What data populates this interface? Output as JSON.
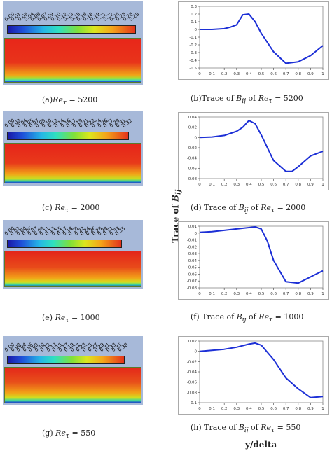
{
  "figures": [
    {
      "id": "a",
      "caption_tag": "(a)",
      "caption_var": "Re",
      "caption_sub": "τ",
      "caption_val": " = 5200",
      "colorbar_ticks": [
        "0.00",
        "0.01",
        "0.03",
        "0.04",
        "0.06",
        "0.07",
        "0.09",
        "0.10",
        "0.12",
        "0.13",
        "0.15",
        "0.16",
        "0.18",
        "0.19",
        "0.21",
        "0.22",
        "0.24",
        "0.25",
        "0.26",
        "0.28"
      ]
    },
    {
      "id": "c",
      "caption_tag": "(c)",
      "caption_var": "Re",
      "caption_sub": "τ",
      "caption_val": " = 2000",
      "colorbar_ticks": [
        "0.00",
        "0.02",
        "0.04",
        "0.05",
        "0.07",
        "0.09",
        "0.10",
        "0.12",
        "0.14",
        "0.16",
        "0.17",
        "0.19",
        "0.21",
        "0.22",
        "0.24",
        "0.26",
        "0.27",
        "0.29",
        "0.31",
        "0.32"
      ]
    },
    {
      "id": "e",
      "caption_tag": "(e)",
      "caption_var": "Re",
      "caption_sub": "τ",
      "caption_val": " = 1000",
      "colorbar_ticks": [
        "0.00",
        "0.02",
        "0.04",
        "0.06",
        "0.07",
        "0.09",
        "0.11",
        "0.13",
        "0.15",
        "0.17",
        "0.18",
        "0.20",
        "0.22",
        "0.24",
        "0.26",
        "0.28",
        "0.29",
        "0.31",
        "0.33",
        "0.35"
      ]
    },
    {
      "id": "g",
      "caption_tag": "(g)",
      "caption_var": "Re",
      "caption_sub": "τ",
      "caption_val": " = 550",
      "colorbar_ticks": [
        "0.00",
        "0.02",
        "0.04",
        "0.06",
        "0.08",
        "0.10",
        "0.12",
        "0.13",
        "0.15",
        "0.17",
        "0.19",
        "0.21",
        "0.23",
        "0.25",
        "0.27",
        "0.29",
        "0.31",
        "0.33",
        "0.35",
        "0.38"
      ]
    }
  ],
  "captions_right": [
    {
      "prefix": "(b)Trace of ",
      "var": "B",
      "sub": "ij",
      "mid": " of ",
      "var2": "Re",
      "sub2": "τ",
      "val": " = 5200"
    },
    {
      "prefix": "(d) Trace of ",
      "var": "B",
      "sub": "ij",
      "mid": " of ",
      "var2": "Re",
      "sub2": "τ",
      "val": " = 2000"
    },
    {
      "prefix": "(f) Trace of ",
      "var": "B",
      "sub": "ij",
      "mid": " of ",
      "var2": "Re",
      "sub2": "τ",
      "val": " = 1000"
    },
    {
      "prefix": "(h) Trace of ",
      "var": "B",
      "sub": "ij",
      "mid": " of ",
      "var2": "Re",
      "sub2": "τ",
      "val": " = 550"
    }
  ],
  "axis_labels": {
    "ylabel_main": "Trace of ",
    "ylabel_var": "B",
    "ylabel_sub": "ij",
    "xlabel": "y/delta"
  },
  "chart_data": [
    {
      "type": "line",
      "id": "b",
      "xlim": [
        0,
        1
      ],
      "ylim": [
        -0.5,
        0.3
      ],
      "xticks": [
        "0",
        "0.1",
        "0.2",
        "0.3",
        "0.4",
        "0.5",
        "0.6",
        "0.7",
        "0.8",
        "0.9",
        "1"
      ],
      "yticks": [
        "0.3",
        "0.2",
        "0.1",
        "0",
        "-0.1",
        "-0.2",
        "-0.3",
        "-0.4",
        "-0.5"
      ],
      "ytick_values": [
        0.3,
        0.2,
        0.1,
        0,
        -0.1,
        -0.2,
        -0.3,
        -0.4,
        -0.5
      ],
      "x": [
        0,
        0.1,
        0.2,
        0.25,
        0.3,
        0.35,
        0.4,
        0.45,
        0.5,
        0.6,
        0.7,
        0.8,
        0.9,
        1.0
      ],
      "y": [
        0,
        0.0,
        0.01,
        0.03,
        0.06,
        0.19,
        0.2,
        0.1,
        -0.05,
        -0.29,
        -0.44,
        -0.42,
        -0.34,
        -0.21
      ]
    },
    {
      "type": "line",
      "id": "d",
      "xlim": [
        0,
        1
      ],
      "ylim": [
        -0.08,
        0.04
      ],
      "xticks": [
        "0",
        "0.1",
        "0.2",
        "0.3",
        "0.4",
        "0.5",
        "0.6",
        "0.7",
        "0.8",
        "0.9",
        "1"
      ],
      "yticks": [
        "0.04",
        "0.02",
        "0",
        "-0.02",
        "-0.04",
        "-0.06",
        "-0.08"
      ],
      "ytick_values": [
        0.04,
        0.02,
        0,
        -0.02,
        -0.04,
        -0.06,
        -0.08
      ],
      "x": [
        0,
        0.1,
        0.2,
        0.3,
        0.35,
        0.4,
        0.45,
        0.5,
        0.6,
        0.7,
        0.75,
        0.8,
        0.9,
        1.0
      ],
      "y": [
        0,
        0.001,
        0.004,
        0.012,
        0.02,
        0.033,
        0.027,
        0.005,
        -0.045,
        -0.066,
        -0.066,
        -0.057,
        -0.036,
        -0.027
      ]
    },
    {
      "type": "line",
      "id": "f",
      "xlim": [
        0,
        1
      ],
      "ylim": [
        -0.08,
        0.01
      ],
      "xticks": [
        "0",
        "0.1",
        "0.2",
        "0.3",
        "0.4",
        "0.5",
        "0.6",
        "0.7",
        "0.8",
        "0.9",
        "1"
      ],
      "yticks": [
        "0.01",
        "0",
        "-0.01",
        "-0.02",
        "-0.03",
        "-0.04",
        "-0.05",
        "-0.06",
        "-0.07",
        "-0.08"
      ],
      "ytick_values": [
        0.01,
        0,
        -0.01,
        -0.02,
        -0.03,
        -0.04,
        -0.05,
        -0.06,
        -0.07,
        -0.08
      ],
      "x": [
        0,
        0.1,
        0.2,
        0.3,
        0.4,
        0.45,
        0.5,
        0.55,
        0.6,
        0.7,
        0.8,
        0.9,
        1.0
      ],
      "y": [
        0.001,
        0.002,
        0.004,
        0.006,
        0.008,
        0.009,
        0.006,
        -0.012,
        -0.04,
        -0.071,
        -0.073,
        -0.064,
        -0.055
      ]
    },
    {
      "type": "line",
      "id": "h",
      "xlim": [
        0,
        1
      ],
      "ylim": [
        -0.1,
        0.02
      ],
      "xticks": [
        "0",
        "0.1",
        "0.2",
        "0.3",
        "0.4",
        "0.5",
        "0.6",
        "0.7",
        "0.8",
        "0.9",
        "1"
      ],
      "yticks": [
        "0.02",
        "0",
        "-0.02",
        "-0.04",
        "-0.06",
        "-0.08",
        "-0.1"
      ],
      "ytick_values": [
        0.02,
        0,
        -0.02,
        -0.04,
        -0.06,
        -0.08,
        -0.1
      ],
      "x": [
        0,
        0.1,
        0.2,
        0.3,
        0.4,
        0.45,
        0.5,
        0.6,
        0.7,
        0.8,
        0.9,
        1.0
      ],
      "y": [
        0,
        0.002,
        0.004,
        0.008,
        0.014,
        0.016,
        0.012,
        -0.016,
        -0.052,
        -0.073,
        -0.09,
        -0.088
      ]
    }
  ]
}
